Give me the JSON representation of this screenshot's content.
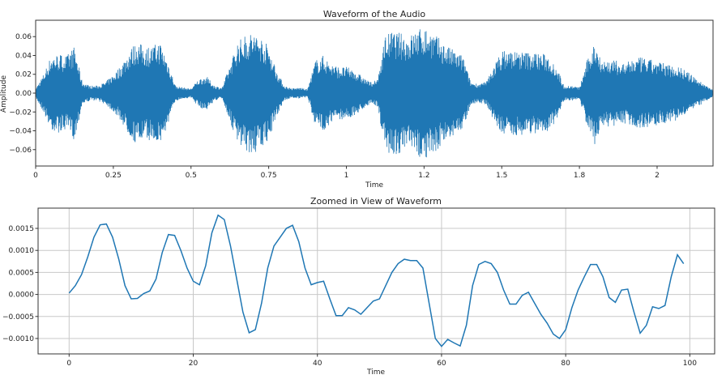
{
  "chart_data": [
    {
      "type": "line",
      "title": "Waveform of the Audio",
      "xlabel": "Time",
      "ylabel": "Amplitude",
      "xlim": [
        0,
        2.18
      ],
      "ylim": [
        -0.0774,
        0.0774
      ],
      "grid": false,
      "color": "#1f77b4",
      "xticks": [
        {
          "value": 0,
          "label": "0"
        },
        {
          "value": 0.25,
          "label": "0.25"
        },
        {
          "value": 0.5,
          "label": "0.5"
        },
        {
          "value": 0.75,
          "label": "0.75"
        },
        {
          "value": 1.0,
          "label": "1"
        },
        {
          "value": 1.25,
          "label": "1.2"
        },
        {
          "value": 1.5,
          "label": "1.5"
        },
        {
          "value": 1.75,
          "label": "1.8"
        },
        {
          "value": 2.0,
          "label": "2"
        }
      ],
      "yticks": [
        {
          "value": 0.06,
          "label": "0.06"
        },
        {
          "value": 0.04,
          "label": "0.04"
        },
        {
          "value": 0.02,
          "label": "0.02"
        },
        {
          "value": 0.0,
          "label": "0.00"
        },
        {
          "value": -0.02,
          "label": "−0.02"
        },
        {
          "value": -0.04,
          "label": "−0.04"
        },
        {
          "value": -0.06,
          "label": "−0.06"
        }
      ],
      "envelope_step": 0.025,
      "envelope": [
        0.005,
        0.02,
        0.04,
        0.042,
        0.04,
        0.05,
        0.012,
        0.008,
        0.008,
        0.012,
        0.02,
        0.03,
        0.045,
        0.055,
        0.05,
        0.05,
        0.055,
        0.035,
        0.008,
        0.006,
        0.005,
        0.015,
        0.018,
        0.008,
        0.006,
        0.03,
        0.055,
        0.062,
        0.065,
        0.06,
        0.05,
        0.025,
        0.008,
        0.005,
        0.006,
        0.004,
        0.035,
        0.04,
        0.032,
        0.028,
        0.028,
        0.025,
        0.018,
        0.012,
        0.014,
        0.062,
        0.066,
        0.064,
        0.06,
        0.068,
        0.07,
        0.066,
        0.058,
        0.05,
        0.045,
        0.04,
        0.012,
        0.01,
        0.012,
        0.03,
        0.045,
        0.046,
        0.045,
        0.044,
        0.044,
        0.043,
        0.04,
        0.03,
        0.008,
        0.008,
        0.006,
        0.035,
        0.055,
        0.035,
        0.036,
        0.034,
        0.032,
        0.037,
        0.038,
        0.036,
        0.034,
        0.032,
        0.03,
        0.028,
        0.022,
        0.016,
        0.01,
        0.005,
        0.001
      ]
    },
    {
      "type": "line",
      "title": "Zoomed in View of Waveform",
      "xlabel": "Time",
      "ylabel": "",
      "xlim": [
        -5,
        104
      ],
      "ylim": [
        -0.00135,
        0.00196
      ],
      "grid": true,
      "color": "#1f77b4",
      "xticks": [
        {
          "value": 0,
          "label": "0"
        },
        {
          "value": 20,
          "label": "20"
        },
        {
          "value": 40,
          "label": "40"
        },
        {
          "value": 60,
          "label": "60"
        },
        {
          "value": 80,
          "label": "80"
        },
        {
          "value": 100,
          "label": "100"
        }
      ],
      "yticks": [
        {
          "value": 0.0015,
          "label": "0.0015"
        },
        {
          "value": 0.001,
          "label": "0.0010"
        },
        {
          "value": 0.0005,
          "label": "0.0005"
        },
        {
          "value": 0.0,
          "label": "0.0000"
        },
        {
          "value": -0.0005,
          "label": "−0.0005"
        },
        {
          "value": -0.001,
          "label": "−0.0010"
        }
      ],
      "values": [
        3e-05,
        0.0002,
        0.00045,
        0.00085,
        0.0013,
        0.00158,
        0.0016,
        0.0013,
        0.0008,
        0.0002,
        -0.0001,
        -9e-05,
        2e-05,
        8e-05,
        0.00035,
        0.00095,
        0.00136,
        0.00134,
        0.001,
        0.0006,
        0.0003,
        0.00022,
        0.00065,
        0.0014,
        0.0018,
        0.0017,
        0.0011,
        0.00035,
        -0.0004,
        -0.00087,
        -0.0008,
        -0.0002,
        0.0006,
        0.0011,
        0.0013,
        0.0015,
        0.00157,
        0.0012,
        0.0006,
        0.00022,
        0.00027,
        0.0003,
        -0.0001,
        -0.00048,
        -0.00048,
        -0.0003,
        -0.00035,
        -0.00045,
        -0.0003,
        -0.00015,
        -0.0001,
        0.0002,
        0.0005,
        0.0007,
        0.0008,
        0.00077,
        0.00077,
        0.0006,
        -0.0002,
        -0.001,
        -0.00118,
        -0.00102,
        -0.0011,
        -0.00117,
        -0.0007,
        0.0002,
        0.00068,
        0.00075,
        0.0007,
        0.0005,
        0.0001,
        -0.00022,
        -0.00022,
        -2e-05,
        5e-05,
        -0.0002,
        -0.00045,
        -0.00065,
        -0.0009,
        -0.001,
        -0.0008,
        -0.0003,
        0.0001,
        0.0004,
        0.00068,
        0.00068,
        0.0004,
        -7e-05,
        -0.00018,
        0.0001,
        0.00012,
        -0.0004,
        -0.00088,
        -0.0007,
        -0.00028,
        -0.00032,
        -0.00025,
        0.0004,
        0.0009,
        0.0007
      ]
    }
  ]
}
